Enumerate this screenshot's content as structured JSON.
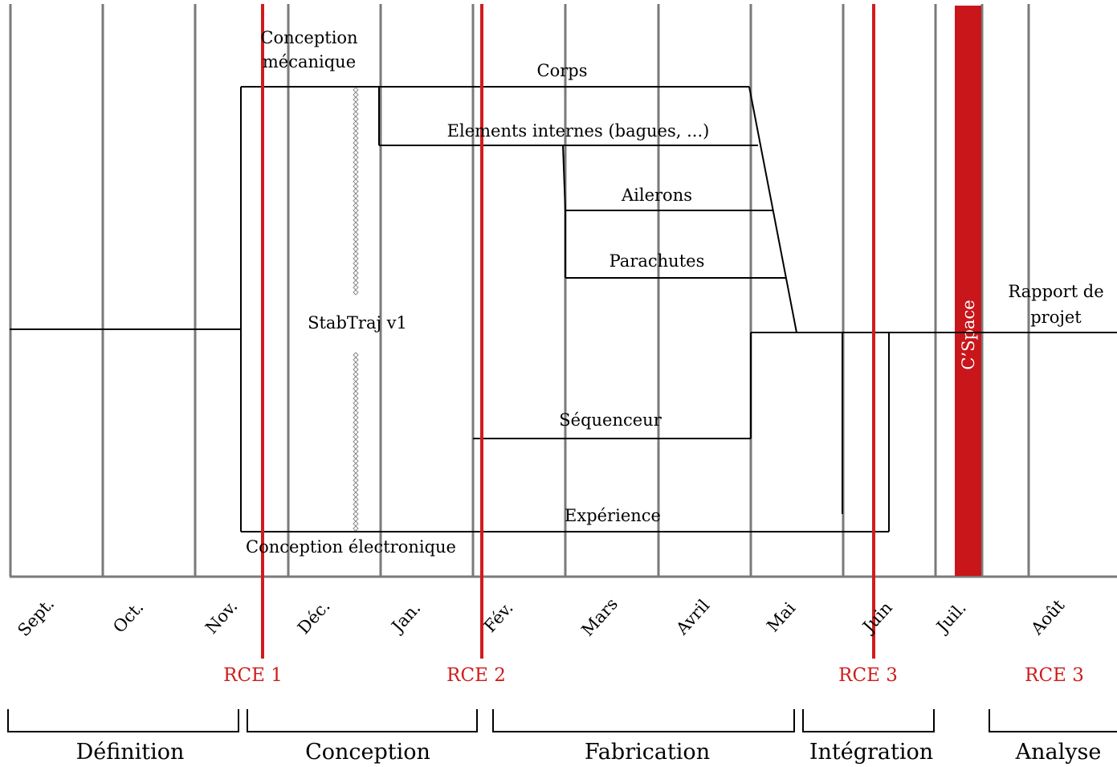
{
  "colors": {
    "grid": "#7a7a7a",
    "task_line": "#000000",
    "milestone": "#d01c1c",
    "cspace_fill": "#c8161b",
    "cspace_text": "#ffffff"
  },
  "months": [
    "Sept.",
    "Oct.",
    "Nov.",
    "Déc.",
    "Jan.",
    "Fév.",
    "Mars",
    "Avril",
    "Mai",
    "Juin",
    "Juil.",
    "Août"
  ],
  "milestones": [
    "RCE 1",
    "RCE 2",
    "RCE 3",
    "RCE 3"
  ],
  "cspace": {
    "label": "C’Space"
  },
  "phases": [
    "Définition",
    "Conception",
    "Fabrication",
    "Intégration",
    "Analyse"
  ],
  "tasks": {
    "conception_mecanique_line1": "Conception",
    "conception_mecanique_line2": "mécanique",
    "corps": "Corps",
    "elements_internes": "Elements internes (bagues, ...)",
    "ailerons": "Ailerons",
    "parachutes": "Parachutes",
    "stabtraj": "StabTraj v1",
    "sequenceur": "Séquenceur",
    "experience": "Expérience",
    "conception_electronique": "Conception électronique",
    "rapport_line1": "Rapport de",
    "rapport_line2": "projet"
  }
}
